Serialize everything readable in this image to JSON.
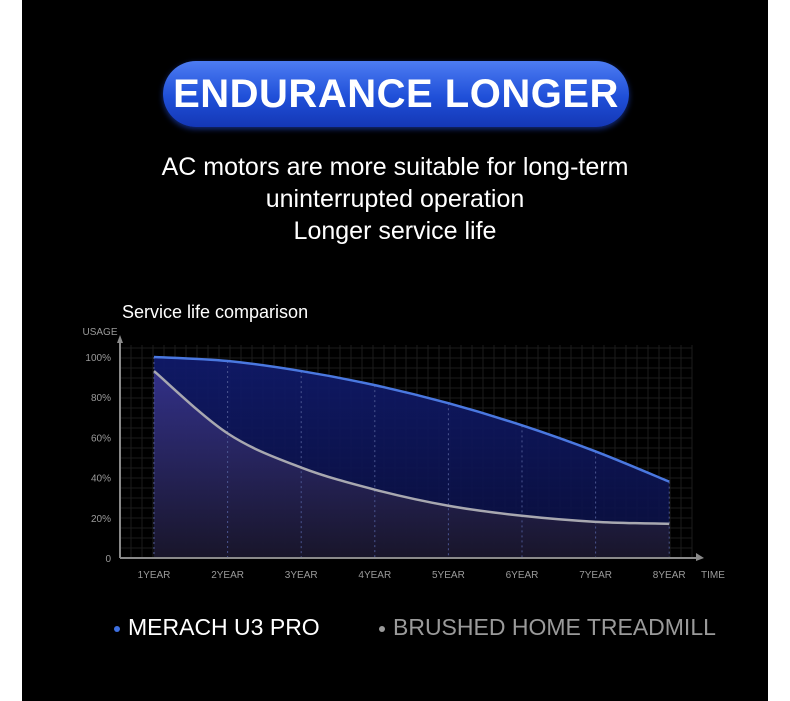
{
  "header": {
    "title": "ENDURANCE LONGER"
  },
  "subtitle_lines": [
    "AC motors are more suitable for long-term",
    "uninterrupted operation",
    "Longer service life"
  ],
  "chart_data": {
    "type": "area",
    "title": "Service life comparison",
    "ylabel": "USAGE",
    "xlabel": "TIME",
    "categories": [
      "1YEAR",
      "2YEAR",
      "3YEAR",
      "4YEAR",
      "5YEAR",
      "6YEAR",
      "7YEAR",
      "8YEAR"
    ],
    "yticks": [
      "0",
      "20%",
      "40%",
      "60%",
      "80%",
      "100%"
    ],
    "ylim": [
      0,
      100
    ],
    "grid": true,
    "series": [
      {
        "name": "MERACH U3 PRO",
        "color": "#3d6fe0",
        "values": [
          100,
          98,
          93,
          86,
          77,
          66,
          53,
          38
        ]
      },
      {
        "name": "BRUSHED HOME TREADMILL",
        "color": "#9a9a9a",
        "values": [
          93,
          62,
          45,
          34,
          26,
          21,
          18,
          17
        ]
      }
    ],
    "legend_position": "bottom"
  }
}
